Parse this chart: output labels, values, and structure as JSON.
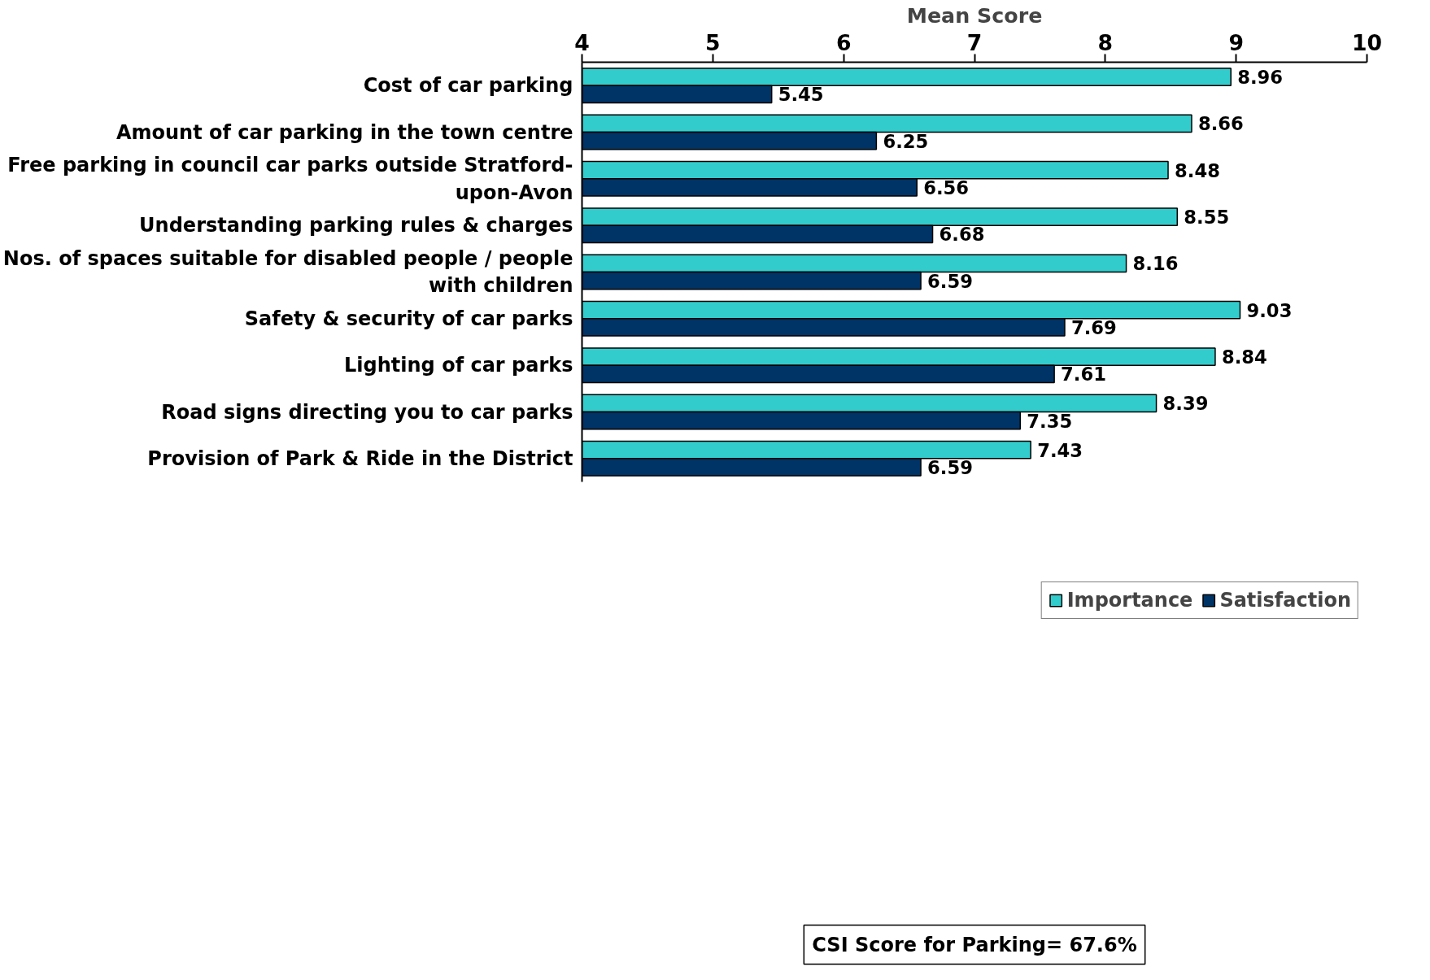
{
  "chart_data": {
    "type": "bar",
    "orientation": "horizontal",
    "xlabel": "Mean Score",
    "categories": [
      "Cost of car parking",
      "Amount of car parking in the town centre",
      "Free parking in council car parks outside Stratford-upon-Avon",
      "Understanding parking rules & charges",
      "Nos. of spaces suitable for disabled people / people with children",
      "Safety & security of car parks",
      "Lighting of car parks",
      "Road signs directing you to car parks",
      "Provision of Park & Ride in the District"
    ],
    "series": [
      {
        "name": "Importance",
        "color": "#33cccc",
        "values": [
          8.96,
          8.66,
          8.48,
          8.55,
          8.16,
          9.03,
          8.84,
          8.39,
          7.43
        ]
      },
      {
        "name": "Satisfaction",
        "color": "#003366",
        "values": [
          5.45,
          6.25,
          6.56,
          6.68,
          6.59,
          7.69,
          7.61,
          7.35,
          6.59
        ]
      }
    ],
    "xlim": [
      4,
      10
    ],
    "xticks": [
      4,
      5,
      6,
      7,
      8,
      9,
      10
    ],
    "data_labels": true,
    "grid": false,
    "legend": "bottom right",
    "annotations": [
      "CSI Score for Parking= 67.6%"
    ]
  }
}
